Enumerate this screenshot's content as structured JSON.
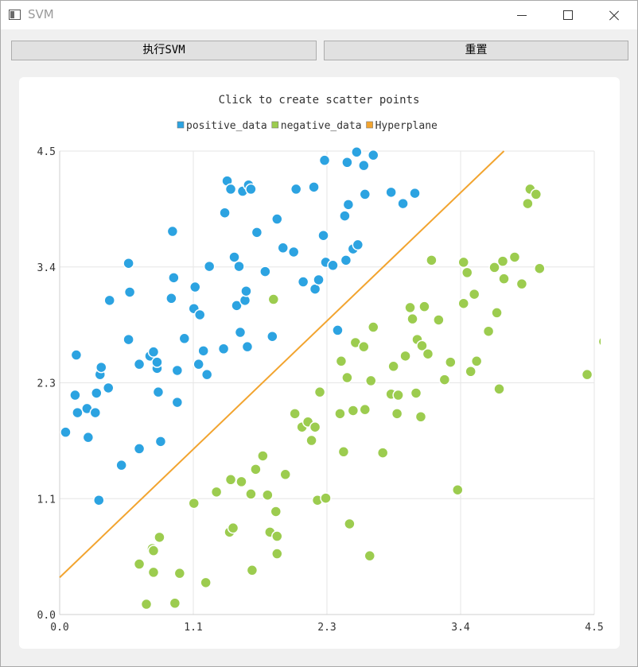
{
  "window": {
    "title": "SVM",
    "icon": "app-window-icon",
    "controls": [
      "minimize-icon",
      "maximize-icon",
      "close-icon"
    ]
  },
  "toolbar": {
    "run_label": "执行SVM",
    "reset_label": "重置"
  },
  "colors": {
    "positive": "#2ca3e1",
    "negative": "#9ccc4f",
    "hyperplane": "#f2a42f",
    "grid": "#e6e6e6"
  },
  "chart_data": {
    "type": "scatter",
    "title": "Click to create scatter points",
    "legend_position": "top-center",
    "grid": true,
    "xlim": [
      0,
      4.5
    ],
    "ylim": [
      0,
      4.5
    ],
    "x_ticks": [
      "0.0",
      "1.1",
      "2.3",
      "3.4",
      "4.5"
    ],
    "y_ticks": [
      "0.0",
      "1.1",
      "2.3",
      "3.4",
      "4.5"
    ],
    "series": [
      {
        "name": "positive_data",
        "color": "#2ca3e1",
        "points": [
          [
            0.05,
            1.77
          ],
          [
            0.13,
            2.13
          ],
          [
            0.14,
            2.52
          ],
          [
            0.15,
            1.96
          ],
          [
            0.23,
            2.0
          ],
          [
            0.24,
            1.72
          ],
          [
            0.3,
            1.96
          ],
          [
            0.31,
            2.15
          ],
          [
            0.33,
            1.11
          ],
          [
            0.34,
            2.33
          ],
          [
            0.35,
            2.4
          ],
          [
            0.41,
            2.2
          ],
          [
            0.42,
            3.05
          ],
          [
            0.52,
            1.45
          ],
          [
            0.58,
            2.67
          ],
          [
            0.58,
            3.41
          ],
          [
            0.59,
            3.13
          ],
          [
            0.67,
            1.61
          ],
          [
            0.67,
            2.43
          ],
          [
            0.76,
            2.51
          ],
          [
            0.79,
            2.55
          ],
          [
            0.82,
            2.39
          ],
          [
            0.82,
            2.45
          ],
          [
            0.83,
            2.16
          ],
          [
            0.85,
            1.68
          ],
          [
            0.94,
            3.07
          ],
          [
            0.95,
            3.72
          ],
          [
            0.96,
            3.27
          ],
          [
            0.99,
            2.37
          ],
          [
            0.99,
            2.06
          ],
          [
            1.05,
            2.68
          ],
          [
            1.13,
            2.97
          ],
          [
            1.14,
            3.18
          ],
          [
            1.17,
            2.43
          ],
          [
            1.18,
            2.91
          ],
          [
            1.21,
            2.56
          ],
          [
            1.24,
            2.33
          ],
          [
            1.26,
            3.38
          ],
          [
            1.38,
            2.58
          ],
          [
            1.39,
            3.9
          ],
          [
            1.41,
            4.21
          ],
          [
            1.44,
            4.13
          ],
          [
            1.47,
            3.47
          ],
          [
            1.49,
            3.0
          ],
          [
            1.51,
            3.38
          ],
          [
            1.52,
            2.74
          ],
          [
            1.54,
            4.11
          ],
          [
            1.56,
            3.05
          ],
          [
            1.57,
            3.14
          ],
          [
            1.58,
            2.6
          ],
          [
            1.59,
            4.17
          ],
          [
            1.61,
            4.13
          ],
          [
            1.66,
            3.71
          ],
          [
            1.73,
            3.33
          ],
          [
            1.79,
            2.7
          ],
          [
            1.83,
            3.84
          ],
          [
            1.88,
            3.56
          ],
          [
            1.97,
            3.52
          ],
          [
            1.99,
            4.13
          ],
          [
            2.05,
            3.23
          ],
          [
            2.14,
            4.15
          ],
          [
            2.15,
            3.16
          ],
          [
            2.18,
            3.25
          ],
          [
            2.22,
            3.68
          ],
          [
            2.23,
            4.41
          ],
          [
            2.24,
            3.42
          ],
          [
            2.3,
            3.39
          ],
          [
            2.34,
            2.76
          ],
          [
            2.4,
            3.87
          ],
          [
            2.41,
            3.44
          ],
          [
            2.42,
            4.39
          ],
          [
            2.43,
            3.98
          ],
          [
            2.47,
            3.55
          ],
          [
            2.5,
            4.49
          ],
          [
            2.51,
            3.59
          ],
          [
            2.56,
            4.36
          ],
          [
            2.57,
            4.08
          ],
          [
            2.64,
            4.46
          ],
          [
            2.79,
            4.1
          ],
          [
            2.89,
            3.99
          ],
          [
            2.99,
            4.09
          ]
        ]
      },
      {
        "name": "negative_data",
        "color": "#9ccc4f",
        "points": [
          [
            0.67,
            0.49
          ],
          [
            0.73,
            0.1
          ],
          [
            0.78,
            0.64
          ],
          [
            0.79,
            0.62
          ],
          [
            0.79,
            0.41
          ],
          [
            0.84,
            0.75
          ],
          [
            0.97,
            0.11
          ],
          [
            1.01,
            0.4
          ],
          [
            1.13,
            1.08
          ],
          [
            1.23,
            0.31
          ],
          [
            1.32,
            1.19
          ],
          [
            1.43,
            0.8
          ],
          [
            1.44,
            1.31
          ],
          [
            1.46,
            0.84
          ],
          [
            1.53,
            1.29
          ],
          [
            1.61,
            1.17
          ],
          [
            1.62,
            0.43
          ],
          [
            1.65,
            1.41
          ],
          [
            1.71,
            1.54
          ],
          [
            1.75,
            1.16
          ],
          [
            1.77,
            0.8
          ],
          [
            1.8,
            3.06
          ],
          [
            1.82,
            1.0
          ],
          [
            1.83,
            0.59
          ],
          [
            1.83,
            0.76
          ],
          [
            1.9,
            1.36
          ],
          [
            1.98,
            1.95
          ],
          [
            2.04,
            1.82
          ],
          [
            2.09,
            1.87
          ],
          [
            2.12,
            1.69
          ],
          [
            2.15,
            1.82
          ],
          [
            2.17,
            1.11
          ],
          [
            2.19,
            2.16
          ],
          [
            2.24,
            1.13
          ],
          [
            2.36,
            1.95
          ],
          [
            2.37,
            2.46
          ],
          [
            2.39,
            1.58
          ],
          [
            2.42,
            2.3
          ],
          [
            2.44,
            0.88
          ],
          [
            2.47,
            1.98
          ],
          [
            2.49,
            2.64
          ],
          [
            2.56,
            2.6
          ],
          [
            2.57,
            1.99
          ],
          [
            2.61,
            0.57
          ],
          [
            2.62,
            2.27
          ],
          [
            2.64,
            2.79
          ],
          [
            2.72,
            1.57
          ],
          [
            2.79,
            2.14
          ],
          [
            2.81,
            2.41
          ],
          [
            2.84,
            1.95
          ],
          [
            2.85,
            2.13
          ],
          [
            2.91,
            2.51
          ],
          [
            2.95,
            2.98
          ],
          [
            2.97,
            2.87
          ],
          [
            3.0,
            2.15
          ],
          [
            3.01,
            2.67
          ],
          [
            3.04,
            1.92
          ],
          [
            3.05,
            2.61
          ],
          [
            3.07,
            2.99
          ],
          [
            3.1,
            2.53
          ],
          [
            3.13,
            3.44
          ],
          [
            3.19,
            2.86
          ],
          [
            3.24,
            2.28
          ],
          [
            3.29,
            2.45
          ],
          [
            3.35,
            1.21
          ],
          [
            3.4,
            3.42
          ],
          [
            3.4,
            3.02
          ],
          [
            3.43,
            3.32
          ],
          [
            3.46,
            2.36
          ],
          [
            3.49,
            3.11
          ],
          [
            3.51,
            2.46
          ],
          [
            3.61,
            2.75
          ],
          [
            3.66,
            3.37
          ],
          [
            3.68,
            2.93
          ],
          [
            3.7,
            2.19
          ],
          [
            3.73,
            3.43
          ],
          [
            3.74,
            3.26
          ],
          [
            3.83,
            3.47
          ],
          [
            3.89,
            3.21
          ],
          [
            3.94,
            3.99
          ],
          [
            3.96,
            4.13
          ],
          [
            4.01,
            4.08
          ],
          [
            4.04,
            3.36
          ],
          [
            4.44,
            2.33
          ],
          [
            4.58,
            2.65
          ]
        ]
      },
      {
        "name": "Hyperplane",
        "type": "line",
        "color": "#f2a42f",
        "x": [
          0.0,
          3.74
        ],
        "y": [
          0.36,
          4.5
        ]
      }
    ]
  }
}
